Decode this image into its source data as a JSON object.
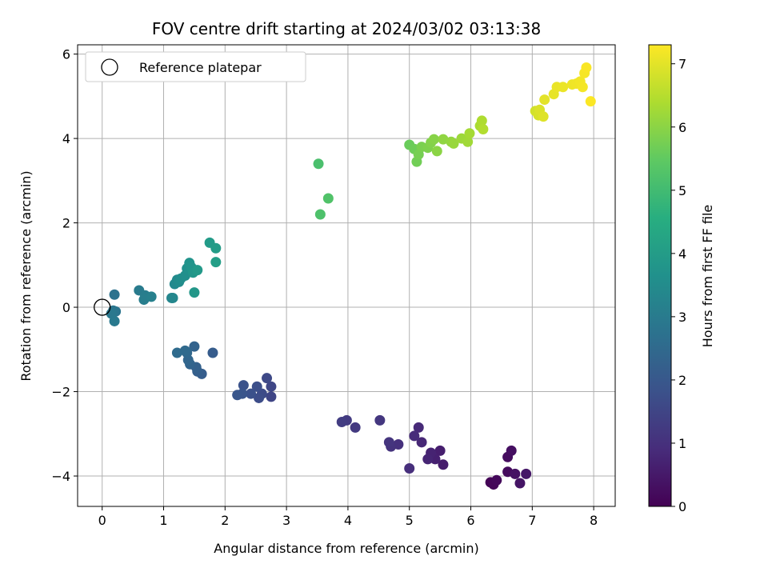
{
  "chart_data": {
    "type": "scatter",
    "title": "FOV centre drift starting at 2024/03/02 03:13:38",
    "xlabel": "Angular distance from reference (arcmin)",
    "ylabel": "Rotation from reference (arcmin)",
    "xlim": [
      -0.4,
      8.35
    ],
    "ylim": [
      -4.72,
      6.22
    ],
    "xticks": [
      0,
      1,
      2,
      3,
      4,
      5,
      6,
      7,
      8
    ],
    "yticks": [
      -4,
      -2,
      0,
      2,
      4,
      6
    ],
    "grid": true,
    "legend": {
      "position": "top-left",
      "entries": [
        "Reference platepar"
      ]
    },
    "reference_point": {
      "x": 0,
      "y": 0,
      "marker": "open-circle"
    },
    "colorbar": {
      "label": "Hours from first FF file",
      "range": [
        0,
        7.3
      ],
      "ticks": [
        0,
        1,
        2,
        3,
        4,
        5,
        6,
        7
      ],
      "colormap": "viridis"
    },
    "points": [
      {
        "x": 6.32,
        "y": -4.15,
        "c": 0.05
      },
      {
        "x": 6.37,
        "y": -4.2,
        "c": 0.1
      },
      {
        "x": 6.42,
        "y": -4.1,
        "c": 0.15
      },
      {
        "x": 6.6,
        "y": -3.9,
        "c": 0.2
      },
      {
        "x": 6.6,
        "y": -3.55,
        "c": 0.25
      },
      {
        "x": 6.66,
        "y": -3.4,
        "c": 0.3
      },
      {
        "x": 6.72,
        "y": -3.95,
        "c": 0.35
      },
      {
        "x": 6.8,
        "y": -4.17,
        "c": 0.4
      },
      {
        "x": 6.9,
        "y": -3.95,
        "c": 0.45
      },
      {
        "x": 5.55,
        "y": -3.73,
        "c": 0.55
      },
      {
        "x": 5.5,
        "y": -3.4,
        "c": 0.6
      },
      {
        "x": 5.42,
        "y": -3.6,
        "c": 0.65
      },
      {
        "x": 5.35,
        "y": -3.45,
        "c": 0.7
      },
      {
        "x": 5.3,
        "y": -3.6,
        "c": 0.75
      },
      {
        "x": 5.2,
        "y": -3.2,
        "c": 0.8
      },
      {
        "x": 5.15,
        "y": -2.85,
        "c": 0.85
      },
      {
        "x": 5.08,
        "y": -3.05,
        "c": 0.9
      },
      {
        "x": 5.0,
        "y": -3.82,
        "c": 0.95
      },
      {
        "x": 4.82,
        "y": -3.25,
        "c": 1.0
      },
      {
        "x": 4.7,
        "y": -3.3,
        "c": 1.05
      },
      {
        "x": 4.67,
        "y": -3.2,
        "c": 1.1
      },
      {
        "x": 4.52,
        "y": -2.68,
        "c": 1.15
      },
      {
        "x": 4.12,
        "y": -2.85,
        "c": 1.2
      },
      {
        "x": 3.98,
        "y": -2.68,
        "c": 1.25
      },
      {
        "x": 3.9,
        "y": -2.72,
        "c": 1.3
      },
      {
        "x": 2.75,
        "y": -2.12,
        "c": 1.5
      },
      {
        "x": 2.75,
        "y": -1.88,
        "c": 1.55
      },
      {
        "x": 2.68,
        "y": -1.68,
        "c": 1.6
      },
      {
        "x": 2.6,
        "y": -2.05,
        "c": 1.65
      },
      {
        "x": 2.55,
        "y": -2.15,
        "c": 1.7
      },
      {
        "x": 2.52,
        "y": -1.88,
        "c": 1.75
      },
      {
        "x": 2.42,
        "y": -2.05,
        "c": 1.8
      },
      {
        "x": 2.3,
        "y": -1.85,
        "c": 1.85
      },
      {
        "x": 2.28,
        "y": -2.05,
        "c": 1.9
      },
      {
        "x": 2.2,
        "y": -2.08,
        "c": 1.95
      },
      {
        "x": 1.8,
        "y": -1.08,
        "c": 2.1
      },
      {
        "x": 1.62,
        "y": -1.58,
        "c": 2.15
      },
      {
        "x": 1.55,
        "y": -1.52,
        "c": 2.2
      },
      {
        "x": 1.53,
        "y": -1.42,
        "c": 2.25
      },
      {
        "x": 1.5,
        "y": -0.93,
        "c": 2.3
      },
      {
        "x": 1.43,
        "y": -1.35,
        "c": 2.35
      },
      {
        "x": 1.4,
        "y": -1.25,
        "c": 2.4
      },
      {
        "x": 1.38,
        "y": -1.08,
        "c": 2.45
      },
      {
        "x": 1.35,
        "y": -1.03,
        "c": 2.5
      },
      {
        "x": 1.22,
        "y": -1.08,
        "c": 2.55
      },
      {
        "x": 0.2,
        "y": 0.3,
        "c": 2.75
      },
      {
        "x": 0.22,
        "y": -0.1,
        "c": 2.8
      },
      {
        "x": 0.18,
        "y": -0.08,
        "c": 2.85
      },
      {
        "x": 0.15,
        "y": -0.15,
        "c": 2.9
      },
      {
        "x": 0.2,
        "y": -0.33,
        "c": 2.95
      },
      {
        "x": 0.6,
        "y": 0.4,
        "c": 3.0
      },
      {
        "x": 0.7,
        "y": 0.28,
        "c": 3.05
      },
      {
        "x": 0.68,
        "y": 0.18,
        "c": 3.1
      },
      {
        "x": 0.8,
        "y": 0.25,
        "c": 3.15
      },
      {
        "x": 1.13,
        "y": 0.22,
        "c": 3.3
      },
      {
        "x": 1.15,
        "y": 0.22,
        "c": 3.35
      },
      {
        "x": 1.18,
        "y": 0.55,
        "c": 3.4
      },
      {
        "x": 1.22,
        "y": 0.65,
        "c": 3.45
      },
      {
        "x": 1.25,
        "y": 0.6,
        "c": 3.5
      },
      {
        "x": 1.28,
        "y": 0.68,
        "c": 3.55
      },
      {
        "x": 1.35,
        "y": 0.75,
        "c": 3.6
      },
      {
        "x": 1.38,
        "y": 0.92,
        "c": 3.65
      },
      {
        "x": 1.42,
        "y": 1.05,
        "c": 3.7
      },
      {
        "x": 1.45,
        "y": 0.95,
        "c": 3.75
      },
      {
        "x": 1.48,
        "y": 0.82,
        "c": 3.8
      },
      {
        "x": 1.5,
        "y": 0.35,
        "c": 3.85
      },
      {
        "x": 1.55,
        "y": 0.88,
        "c": 3.9
      },
      {
        "x": 1.75,
        "y": 1.53,
        "c": 3.95
      },
      {
        "x": 1.85,
        "y": 1.4,
        "c": 4.0
      },
      {
        "x": 1.85,
        "y": 1.07,
        "c": 4.05
      },
      {
        "x": 3.52,
        "y": 3.4,
        "c": 5.15
      },
      {
        "x": 3.55,
        "y": 2.2,
        "c": 5.2
      },
      {
        "x": 3.68,
        "y": 2.58,
        "c": 5.25
      },
      {
        "x": 5.0,
        "y": 3.85,
        "c": 5.6
      },
      {
        "x": 5.08,
        "y": 3.75,
        "c": 5.65
      },
      {
        "x": 5.12,
        "y": 3.45,
        "c": 5.7
      },
      {
        "x": 5.15,
        "y": 3.62,
        "c": 5.75
      },
      {
        "x": 5.2,
        "y": 3.8,
        "c": 5.8
      },
      {
        "x": 5.3,
        "y": 3.78,
        "c": 5.85
      },
      {
        "x": 5.35,
        "y": 3.9,
        "c": 5.9
      },
      {
        "x": 5.4,
        "y": 3.98,
        "c": 5.95
      },
      {
        "x": 5.45,
        "y": 3.7,
        "c": 6.0
      },
      {
        "x": 5.55,
        "y": 3.98,
        "c": 6.05
      },
      {
        "x": 5.68,
        "y": 3.92,
        "c": 6.1
      },
      {
        "x": 5.72,
        "y": 3.88,
        "c": 6.15
      },
      {
        "x": 5.85,
        "y": 4.0,
        "c": 6.2
      },
      {
        "x": 5.95,
        "y": 3.92,
        "c": 6.25
      },
      {
        "x": 5.98,
        "y": 4.12,
        "c": 6.3
      },
      {
        "x": 6.15,
        "y": 4.3,
        "c": 6.35
      },
      {
        "x": 6.18,
        "y": 4.42,
        "c": 6.4
      },
      {
        "x": 6.2,
        "y": 4.22,
        "c": 6.45
      },
      {
        "x": 7.05,
        "y": 4.65,
        "c": 6.8
      },
      {
        "x": 7.1,
        "y": 4.55,
        "c": 6.85
      },
      {
        "x": 7.12,
        "y": 4.68,
        "c": 6.9
      },
      {
        "x": 7.18,
        "y": 4.52,
        "c": 6.95
      },
      {
        "x": 7.2,
        "y": 4.92,
        "c": 7.0
      },
      {
        "x": 7.35,
        "y": 5.05,
        "c": 7.05
      },
      {
        "x": 7.4,
        "y": 5.22,
        "c": 7.08
      },
      {
        "x": 7.5,
        "y": 5.22,
        "c": 7.1
      },
      {
        "x": 7.65,
        "y": 5.28,
        "c": 7.13
      },
      {
        "x": 7.72,
        "y": 5.3,
        "c": 7.15
      },
      {
        "x": 7.78,
        "y": 5.35,
        "c": 7.18
      },
      {
        "x": 7.82,
        "y": 5.22,
        "c": 7.2
      },
      {
        "x": 7.85,
        "y": 5.55,
        "c": 7.22
      },
      {
        "x": 7.88,
        "y": 5.68,
        "c": 7.25
      },
      {
        "x": 7.95,
        "y": 4.88,
        "c": 7.28
      }
    ]
  }
}
